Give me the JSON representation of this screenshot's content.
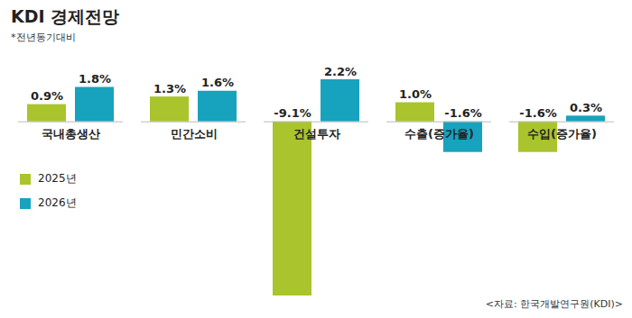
{
  "chart_data": {
    "type": "bar",
    "title": "KDI 경제전망",
    "subtitle": "*전년동기대비",
    "source": "<자료: 한국개발연구원(KDI)>",
    "categories": [
      "국내총생산",
      "민간소비",
      "건설투자",
      "수출(증가율)",
      "수입(증가율)"
    ],
    "series": [
      {
        "name": "2025년",
        "color": "#a9c42c",
        "values": [
          0.9,
          1.3,
          -9.1,
          1.0,
          -1.6
        ],
        "value_labels": [
          "0.9%",
          "1.3%",
          "-9.1%",
          "1.0%",
          "-1.6%"
        ]
      },
      {
        "name": "2026년",
        "color": "#17a2be",
        "values": [
          1.8,
          1.6,
          2.2,
          -1.6,
          0.3
        ],
        "value_labels": [
          "1.8%",
          "1.6%",
          "2.2%",
          "-1.6%",
          "0.3%"
        ]
      }
    ],
    "ylim": [
      -9.1,
      2.2
    ],
    "data_labels": true,
    "legend": "bottom-left"
  }
}
